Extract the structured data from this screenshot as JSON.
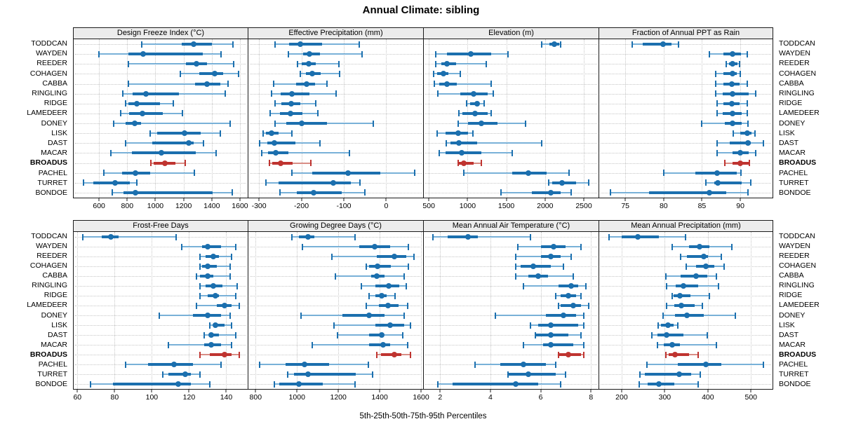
{
  "title": "Annual Climate: sibling",
  "footer": "5th-25th-50th-75th-95th Percentiles",
  "stations": [
    "TODDCAN",
    "WAYDEN",
    "REEDER",
    "COHAGEN",
    "CABBA",
    "RINGLING",
    "RIDGE",
    "LAMEDEER",
    "DONEY",
    "LISK",
    "DAST",
    "MACAR",
    "BROADUS",
    "PACHEL",
    "TURRET",
    "BONDOE"
  ],
  "highlight_station": "BROADUS",
  "colors": {
    "series": "#1b6fae",
    "series_light": "#79b1d8",
    "highlight": "#bf3430",
    "highlight_light": "#d88e86",
    "strip_bg": "#ececec",
    "grid": "#c6c6c6",
    "border": "#1a1a1a"
  },
  "chart_data": [
    {
      "type": "dotplot-percentiles",
      "title": "Design Freeze Index (°C)",
      "row": 0,
      "col": 0,
      "percentiles": [
        5,
        25,
        50,
        75,
        95
      ],
      "xlim": [
        420,
        1655
      ],
      "ticks": [
        600,
        800,
        1000,
        1200,
        1400,
        1600
      ],
      "values": {
        "TODDCAN": [
          905,
          1185,
          1270,
          1400,
          1550
        ],
        "WAYDEN": [
          600,
          810,
          915,
          1335,
          1465
        ],
        "REEDER": [
          810,
          1215,
          1290,
          1365,
          1555
        ],
        "COHAGEN": [
          1175,
          1310,
          1420,
          1480,
          1590
        ],
        "CABBA": [
          810,
          1280,
          1365,
          1460,
          1515
        ],
        "RINGLING": [
          770,
          840,
          935,
          1165,
          1495
        ],
        "RIDGE": [
          790,
          810,
          870,
          1035,
          1125
        ],
        "LAMEDEER": [
          755,
          815,
          910,
          1050,
          1190
        ],
        "DONEY": [
          705,
          790,
          855,
          900,
          1530
        ],
        "LISK": [
          965,
          1015,
          1205,
          1320,
          1460
        ],
        "DAST": [
          790,
          980,
          1235,
          1270,
          1340
        ],
        "MACAR": [
          685,
          835,
          1040,
          1285,
          1430
        ],
        "BROADUS": [
          970,
          990,
          1065,
          1140,
          1210
        ],
        "PACHEL": [
          635,
          765,
          860,
          965,
          1275
        ],
        "TURRET": [
          490,
          560,
          715,
          820,
          870
        ],
        "BONDOE": [
          695,
          775,
          860,
          1405,
          1545
        ]
      }
    },
    {
      "type": "dotplot-percentiles",
      "title": "Effective Precipitation (mm)",
      "row": 0,
      "col": 1,
      "percentiles": [
        5,
        25,
        50,
        75,
        95
      ],
      "xlim": [
        -325,
        87
      ],
      "ticks": [
        -300,
        -200,
        -100,
        0
      ],
      "values": {
        "TODDCAN": [
          -262,
          -229,
          -202,
          -151,
          -64
        ],
        "WAYDEN": [
          -231,
          -196,
          -181,
          -156,
          -57
        ],
        "REEDER": [
          -209,
          -199,
          -183,
          -166,
          -112
        ],
        "COHAGEN": [
          -202,
          -189,
          -174,
          -155,
          -110
        ],
        "CABBA": [
          -265,
          -212,
          -188,
          -168,
          -140
        ],
        "RINGLING": [
          -270,
          -249,
          -222,
          -181,
          -118
        ],
        "RIDGE": [
          -262,
          -247,
          -224,
          -202,
          -166
        ],
        "LAMEDEER": [
          -274,
          -250,
          -226,
          -197,
          -161
        ],
        "DONEY": [
          -262,
          -236,
          -199,
          -140,
          -31
        ],
        "LISK": [
          -290,
          -283,
          -270,
          -254,
          -222
        ],
        "DAST": [
          -298,
          -281,
          -264,
          -214,
          -156
        ],
        "MACAR": [
          -293,
          -278,
          -260,
          -231,
          -87
        ],
        "BROADUS": [
          -276,
          -268,
          -249,
          -220,
          -177
        ],
        "PACHEL": [
          -222,
          -174,
          -90,
          -14,
          67
        ],
        "TURRET": [
          -283,
          -254,
          -125,
          -84,
          -62
        ],
        "BONDOE": [
          -250,
          -211,
          -171,
          -105,
          -50
        ]
      }
    },
    {
      "type": "dotplot-percentiles",
      "title": "Elevation (m)",
      "row": 0,
      "col": 2,
      "percentiles": [
        5,
        25,
        50,
        75,
        95
      ],
      "xlim": [
        435,
        2690
      ],
      "ticks": [
        500,
        1000,
        1500,
        2000,
        2500
      ],
      "values": {
        "TODDCAN": [
          1955,
          2055,
          2120,
          2180,
          2200
        ],
        "WAYDEN": [
          590,
          735,
          1045,
          1300,
          1520
        ],
        "REEDER": [
          590,
          665,
          735,
          855,
          1245
        ],
        "COHAGEN": [
          565,
          610,
          690,
          755,
          910
        ],
        "CABBA": [
          575,
          635,
          735,
          865,
          1300
        ],
        "RINGLING": [
          620,
          910,
          1075,
          1255,
          1335
        ],
        "RIDGE": [
          990,
          1030,
          1120,
          1155,
          1210
        ],
        "LAMEDEER": [
          890,
          935,
          1100,
          1255,
          1300
        ],
        "DONEY": [
          880,
          1010,
          1180,
          1390,
          1745
        ],
        "LISK": [
          610,
          720,
          880,
          1010,
          1065
        ],
        "DAST": [
          725,
          775,
          890,
          1125,
          1955
        ],
        "MACAR": [
          635,
          720,
          925,
          1180,
          1575
        ],
        "BROADUS": [
          880,
          890,
          955,
          1075,
          1180
        ],
        "PACHEL": [
          955,
          1575,
          1780,
          2020,
          2310
        ],
        "TURRET": [
          2045,
          2090,
          2220,
          2400,
          2560
        ],
        "BONDOE": [
          1430,
          1830,
          2075,
          2200,
          2335
        ]
      }
    },
    {
      "type": "dotplot-percentiles",
      "title": "Fraction of Annual PPT as Rain",
      "row": 0,
      "col": 3,
      "percentiles": [
        5,
        25,
        50,
        75,
        95
      ],
      "xlim": [
        71.6,
        94.2
      ],
      "ticks": [
        75,
        80,
        85,
        90
      ],
      "values": {
        "TODDCAN": [
          75.9,
          77.3,
          79.9,
          81.0,
          81.9
        ],
        "WAYDEN": [
          86.0,
          87.8,
          89.0,
          90.1,
          90.9
        ],
        "REEDER": [
          88.2,
          88.5,
          89.0,
          89.6,
          89.9
        ],
        "COHAGEN": [
          86.8,
          87.8,
          89.0,
          89.5,
          90.0
        ],
        "CABBA": [
          86.8,
          87.8,
          88.9,
          89.9,
          90.9
        ],
        "RINGLING": [
          86.8,
          87.7,
          89.0,
          91.1,
          92.0
        ],
        "RIDGE": [
          87.0,
          87.8,
          88.9,
          89.9,
          90.9
        ],
        "LAMEDEER": [
          87.0,
          87.7,
          89.0,
          90.2,
          90.9
        ],
        "DONEY": [
          85.0,
          88.0,
          89.0,
          90.2,
          91.0
        ],
        "LISK": [
          89.1,
          90.0,
          90.9,
          91.5,
          91.9
        ],
        "DAST": [
          87.0,
          88.6,
          91.0,
          91.4,
          93.0
        ],
        "MACAR": [
          87.0,
          89.0,
          90.0,
          91.1,
          92.0
        ],
        "BROADUS": [
          88.0,
          89.0,
          90.0,
          91.1,
          91.2
        ],
        "PACHEL": [
          80.0,
          84.1,
          87.0,
          89.5,
          90.1
        ],
        "TURRET": [
          85.5,
          86.6,
          87.1,
          90.2,
          91.4
        ],
        "BONDOE": [
          73.1,
          78.1,
          86.0,
          88.2,
          91.0
        ]
      }
    },
    {
      "type": "dotplot-percentiles",
      "title": "Frost-Free Days",
      "row": 1,
      "col": 0,
      "percentiles": [
        5,
        25,
        50,
        75,
        95
      ],
      "xlim": [
        58,
        151.5
      ],
      "ticks": [
        60,
        80,
        100,
        120,
        140
      ],
      "values": {
        "TODDCAN": [
          63,
          73,
          78,
          82,
          113
        ],
        "WAYDEN": [
          116,
          127,
          130,
          137,
          145
        ],
        "REEDER": [
          126,
          129,
          133,
          136,
          143
        ],
        "COHAGEN": [
          126,
          127,
          130,
          135,
          142
        ],
        "CABBA": [
          124,
          126,
          130,
          133,
          142
        ],
        "RINGLING": [
          126,
          129,
          133,
          138,
          146
        ],
        "RIDGE": [
          126,
          130,
          134,
          136,
          145
        ],
        "LAMEDEER": [
          124,
          135,
          139,
          143,
          147
        ],
        "DONEY": [
          104,
          122,
          130,
          137,
          142
        ],
        "LISK": [
          131,
          133,
          134,
          139,
          143
        ],
        "DAST": [
          128,
          131,
          132,
          136,
          145
        ],
        "MACAR": [
          109,
          128,
          132,
          137,
          143
        ],
        "BROADUS": [
          126,
          131,
          139,
          143,
          147
        ],
        "PACHEL": [
          86,
          98,
          112,
          122,
          137
        ],
        "TURRET": [
          106,
          109,
          118,
          121,
          126
        ],
        "BONDOE": [
          67,
          79,
          114,
          121,
          131
        ]
      }
    },
    {
      "type": "dotplot-percentiles",
      "title": "Growing Degree Days (°C)",
      "row": 1,
      "col": 1,
      "percentiles": [
        5,
        25,
        50,
        75,
        95
      ],
      "xlim": [
        765,
        1610
      ],
      "ticks": [
        800,
        1000,
        1200,
        1400,
        1600
      ],
      "values": {
        "TODDCAN": [
          975,
          1010,
          1055,
          1085,
          1280
        ],
        "WAYDEN": [
          1025,
          1300,
          1375,
          1450,
          1540
        ],
        "REEDER": [
          1170,
          1385,
          1470,
          1530,
          1565
        ],
        "COHAGEN": [
          1335,
          1350,
          1390,
          1455,
          1540
        ],
        "CABBA": [
          1185,
          1360,
          1385,
          1425,
          1520
        ],
        "RINGLING": [
          1310,
          1380,
          1445,
          1495,
          1530
        ],
        "RIDGE": [
          1350,
          1380,
          1410,
          1435,
          1475
        ],
        "LAMEDEER": [
          1335,
          1395,
          1440,
          1490,
          1535
        ],
        "DONEY": [
          1020,
          1220,
          1350,
          1425,
          1520
        ],
        "LISK": [
          1180,
          1380,
          1450,
          1520,
          1550
        ],
        "DAST": [
          1195,
          1350,
          1410,
          1420,
          1510
        ],
        "MACAR": [
          1075,
          1350,
          1415,
          1450,
          1535
        ],
        "BROADUS": [
          1385,
          1405,
          1470,
          1505,
          1550
        ],
        "PACHEL": [
          820,
          945,
          1035,
          1155,
          1345
        ],
        "TURRET": [
          955,
          985,
          1055,
          1285,
          1365
        ],
        "BONDOE": [
          890,
          915,
          1010,
          1125,
          1280
        ]
      }
    },
    {
      "type": "dotplot-percentiles",
      "title": "Mean Annual Air Temperature (°C)",
      "row": 1,
      "col": 2,
      "percentiles": [
        5,
        25,
        50,
        75,
        95
      ],
      "xlim": [
        1.35,
        8.3
      ],
      "ticks": [
        2,
        4,
        6,
        8
      ],
      "values": {
        "TODDCAN": [
          1.7,
          2.3,
          3.1,
          3.5,
          5.6
        ],
        "WAYDEN": [
          5.1,
          6.0,
          6.5,
          7.0,
          7.6
        ],
        "REEDER": [
          5.0,
          6.0,
          6.4,
          6.8,
          7.2
        ],
        "COHAGEN": [
          5.0,
          5.2,
          5.7,
          6.4,
          6.9
        ],
        "CABBA": [
          5.0,
          5.5,
          5.9,
          6.3,
          7.3
        ],
        "RINGLING": [
          5.3,
          6.7,
          7.2,
          7.5,
          7.8
        ],
        "RIDGE": [
          6.6,
          6.8,
          7.1,
          7.4,
          7.6
        ],
        "LAMEDEER": [
          6.7,
          6.8,
          7.3,
          7.6,
          7.9
        ],
        "DONEY": [
          4.2,
          6.2,
          6.9,
          7.4,
          7.7
        ],
        "LISK": [
          5.6,
          5.9,
          6.4,
          7.5,
          7.7
        ],
        "DAST": [
          5.8,
          5.8,
          6.4,
          7.1,
          7.6
        ],
        "MACAR": [
          5.3,
          6.1,
          6.4,
          7.3,
          7.7
        ],
        "BROADUS": [
          6.7,
          6.7,
          7.1,
          7.6,
          7.7
        ],
        "PACHEL": [
          3.4,
          4.4,
          5.3,
          6.2,
          6.6
        ],
        "TURRET": [
          4.7,
          4.7,
          5.5,
          6.6,
          7.0
        ],
        "BONDOE": [
          1.9,
          2.5,
          5.0,
          5.9,
          6.8
        ]
      }
    },
    {
      "type": "dotplot-percentiles",
      "title": "Mean Annual Precipitation (mm)",
      "row": 1,
      "col": 3,
      "percentiles": [
        5,
        25,
        50,
        75,
        95
      ],
      "xlim": [
        148,
        550
      ],
      "ticks": [
        200,
        300,
        400,
        500
      ],
      "values": {
        "TODDCAN": [
          170,
          200,
          237,
          286,
          348
        ],
        "WAYDEN": [
          318,
          356,
          380,
          404,
          456
        ],
        "REEDER": [
          336,
          351,
          390,
          400,
          432
        ],
        "COHAGEN": [
          349,
          372,
          395,
          415,
          437
        ],
        "CABBA": [
          302,
          336,
          373,
          398,
          419
        ],
        "RINGLING": [
          304,
          326,
          344,
          378,
          424
        ],
        "RIDGE": [
          318,
          320,
          335,
          359,
          403
        ],
        "LAMEDEER": [
          305,
          322,
          338,
          370,
          388
        ],
        "DONEY": [
          296,
          323,
          352,
          390,
          464
        ],
        "LISK": [
          284,
          292,
          307,
          320,
          331
        ],
        "DAST": [
          270,
          283,
          305,
          344,
          399
        ],
        "MACAR": [
          283,
          297,
          317,
          335,
          419
        ],
        "BROADUS": [
          302,
          309,
          323,
          357,
          378
        ],
        "PACHEL": [
          258,
          331,
          395,
          432,
          529
        ],
        "TURRET": [
          242,
          254,
          333,
          362,
          383
        ],
        "BONDOE": [
          241,
          260,
          286,
          322,
          378
        ]
      }
    }
  ]
}
